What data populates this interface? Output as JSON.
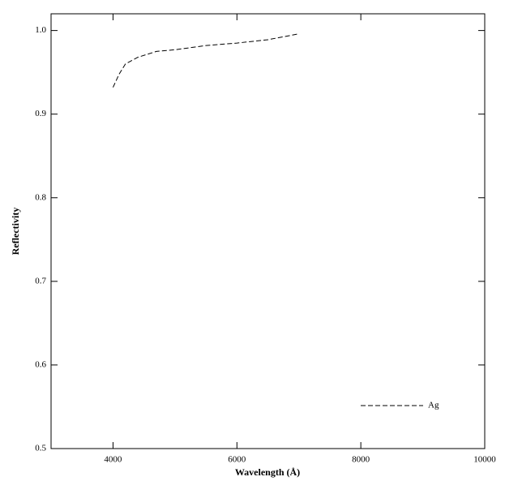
{
  "chart_data": {
    "type": "line",
    "x_label": "Wavelength (Å)",
    "y_label": "Reflectivity",
    "x": [
      4000,
      4100,
      4200,
      4400,
      4700,
      5000,
      5500,
      6000,
      6500,
      7000
    ],
    "series": [
      {
        "name": "Ag",
        "color": "#000000",
        "values": [
          0.932,
          0.948,
          0.96,
          0.968,
          0.975,
          0.977,
          0.982,
          0.985,
          0.989,
          0.996
        ]
      }
    ],
    "xlim": [
      3000,
      10000
    ],
    "ylim": [
      0.5,
      1.02
    ],
    "xticks": [
      4000,
      6000,
      8000,
      10000
    ],
    "yticks": [
      {
        "value": 0.5,
        "label": "0.5"
      },
      {
        "value": 0.6,
        "label": "0.6"
      },
      {
        "value": 0.7,
        "label": "0.7"
      },
      {
        "value": 0.8,
        "label": "0.8"
      },
      {
        "value": 0.9,
        "label": "0.9"
      },
      {
        "value": 1.0,
        "label": "1.0"
      }
    ],
    "legend": "lower right",
    "dashed": true
  }
}
